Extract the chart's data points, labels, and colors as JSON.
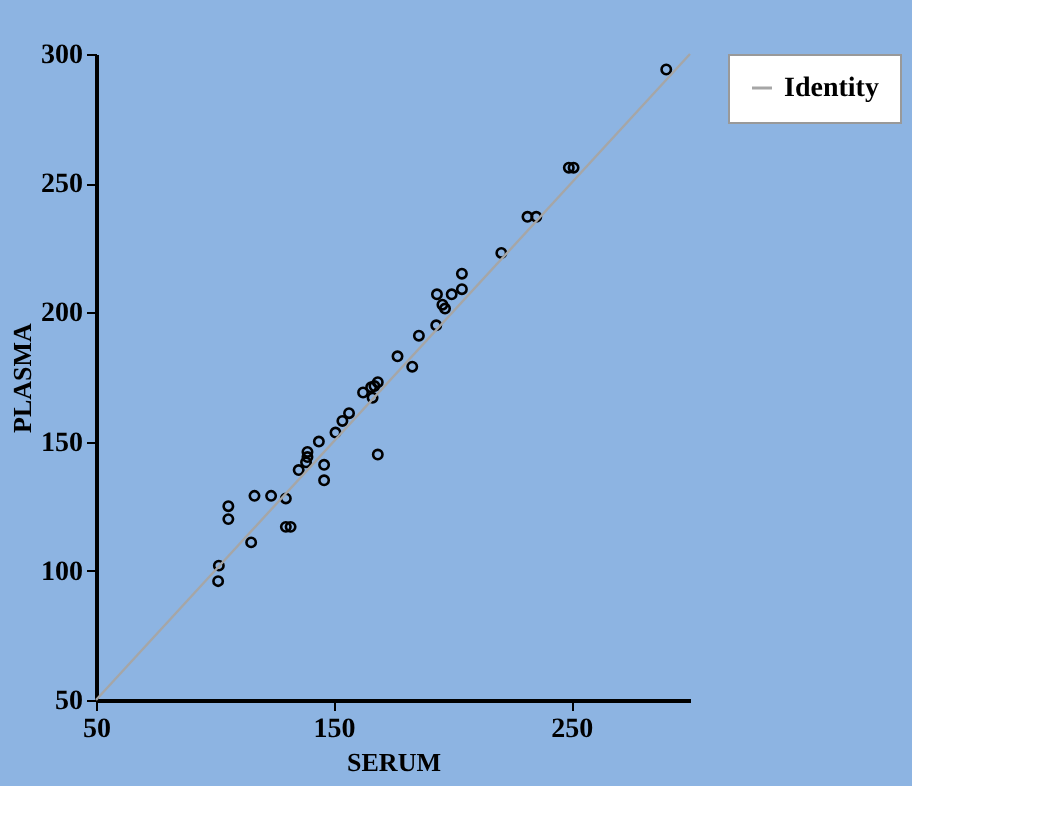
{
  "chart_data": {
    "type": "scatter",
    "xlabel": "SERUM",
    "ylabel": "PLASMA",
    "xlim": [
      50,
      300
    ],
    "xticks": [
      50,
      150,
      250
    ],
    "ylim": [
      50,
      300
    ],
    "yticks": [
      50,
      100,
      150,
      200,
      250,
      300
    ],
    "grid": false,
    "legend": "top right",
    "marker": "circle",
    "series": [
      {
        "color": "#000000",
        "x": [
          290,
          249,
          251,
          231.6,
          235.3,
          220.6,
          204,
          204,
          193.5,
          199.7,
          195.8,
          196.9,
          193.2,
          185.9,
          176.9,
          183.1,
          168.6,
          165.8,
          162.4,
          166.4,
          167.2,
          156.5,
          153.7,
          150.8,
          143.8,
          139,
          139,
          138.4,
          135.3,
          146,
          146,
          168.6,
          129.9,
          123.7,
          116.7,
          105.7,
          105.7,
          129.9,
          131.9,
          115.3,
          101.7,
          101.4
        ],
        "values": [
          294,
          256,
          256,
          237,
          237,
          223,
          215,
          209,
          207,
          207,
          203,
          201.5,
          195,
          191,
          183,
          179,
          173,
          171,
          169,
          167,
          171.5,
          161,
          158,
          153.5,
          150,
          146,
          144,
          142,
          139,
          141,
          135,
          145,
          128,
          129,
          129,
          125,
          120,
          117,
          117,
          111,
          102,
          96
        ]
      },
      {
        "type": "line",
        "name": "Identity",
        "color": "#a6a6a6",
        "x": [
          50,
          300
        ],
        "values": [
          50,
          300
        ],
        "marker": "none",
        "line_style": "solid"
      }
    ]
  }
}
